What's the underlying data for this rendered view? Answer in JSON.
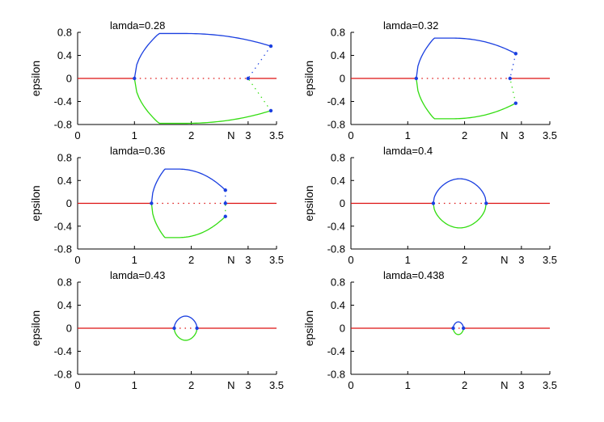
{
  "chart_data": [
    {
      "type": "line",
      "title": "",
      "annotation": "lamda=0.28",
      "xlabel": "N",
      "ylabel": "epsilon",
      "xlim": [
        0,
        3.5
      ],
      "ylim": [
        -0.8,
        0.8
      ],
      "xticks": [
        "0",
        "1",
        "2",
        "3",
        "3.5"
      ],
      "yticks": [
        "0.8",
        "0.4",
        "0",
        "-0.4",
        "-0.8"
      ],
      "curve": {
        "n_bif": 1.0,
        "n_turn": 3.4,
        "n_back": 3.0,
        "amp_max": 0.78,
        "amp_turn": 0.56
      }
    },
    {
      "type": "line",
      "title": "",
      "annotation": "lamda=0.32",
      "xlabel": "N",
      "ylabel": "epsilon",
      "xlim": [
        0,
        3.5
      ],
      "ylim": [
        -0.8,
        0.8
      ],
      "xticks": [
        "0",
        "1",
        "2",
        "3",
        "3.5"
      ],
      "yticks": [
        "0.8",
        "0.4",
        "0",
        "-0.4",
        "-0.8"
      ],
      "curve": {
        "n_bif": 1.15,
        "n_turn": 2.9,
        "n_back": 2.8,
        "amp_max": 0.7,
        "amp_turn": 0.43
      }
    },
    {
      "type": "line",
      "title": "",
      "annotation": "lamda=0.36",
      "xlabel": "N",
      "ylabel": "epsilon",
      "xlim": [
        0,
        3.5
      ],
      "ylim": [
        -0.8,
        0.8
      ],
      "xticks": [
        "0",
        "1",
        "2",
        "3",
        "3.5"
      ],
      "yticks": [
        "0.8",
        "0.4",
        "0",
        "-0.4",
        "-0.8"
      ],
      "curve": {
        "n_bif": 1.3,
        "n_turn": 2.6,
        "n_back": 2.6,
        "amp_max": 0.6,
        "amp_turn": 0.23
      }
    },
    {
      "type": "line",
      "title": "",
      "annotation": "lamda=0.4",
      "xlabel": "N",
      "ylabel": "epsilon",
      "xlim": [
        0,
        3.5
      ],
      "ylim": [
        -0.8,
        0.8
      ],
      "xticks": [
        "0",
        "1",
        "2",
        "3",
        "3.5"
      ],
      "yticks": [
        "0.8",
        "0.4",
        "0",
        "-0.4",
        "-0.8"
      ],
      "curve": {
        "n_bif": 1.45,
        "n_turn": 2.38,
        "n_back": 2.38,
        "amp_max": 0.43,
        "amp_turn": 0.0
      }
    },
    {
      "type": "line",
      "title": "",
      "annotation": "lamda=0.43",
      "xlabel": "N",
      "ylabel": "epsilon",
      "xlim": [
        0,
        3.5
      ],
      "ylim": [
        -0.8,
        0.8
      ],
      "xticks": [
        "0",
        "1",
        "2",
        "3",
        "3.5"
      ],
      "yticks": [
        "0.8",
        "0.4",
        "0",
        "-0.4",
        "-0.8"
      ],
      "curve": {
        "n_bif": 1.7,
        "n_turn": 2.1,
        "n_back": 2.1,
        "amp_max": 0.21,
        "amp_turn": 0.0
      }
    },
    {
      "type": "line",
      "title": "",
      "annotation": "lamda=0.438",
      "xlabel": "N",
      "ylabel": "epsilon",
      "xlim": [
        0,
        3.5
      ],
      "ylim": [
        -0.8,
        0.8
      ],
      "xticks": [
        "0",
        "1",
        "2",
        "3",
        "3.5"
      ],
      "yticks": [
        "0.8",
        "0.4",
        "0",
        "-0.4",
        "-0.8"
      ],
      "curve": {
        "n_bif": 1.8,
        "n_turn": 1.98,
        "n_back": 1.98,
        "amp_max": 0.11,
        "amp_turn": 0.0
      }
    }
  ],
  "colors": {
    "upper": "#1a3fe0",
    "lower": "#33dd11",
    "axis_line": "#dd1111",
    "marker": "#1a3fe0"
  }
}
